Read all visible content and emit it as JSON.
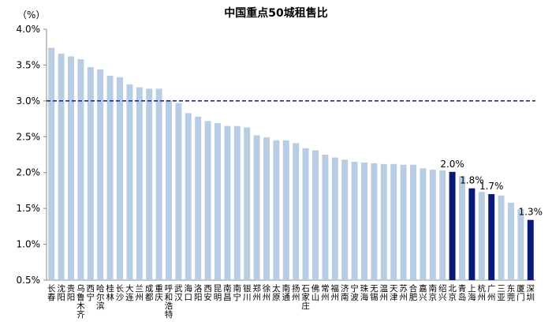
{
  "chart_data": {
    "type": "bar",
    "title": "中国重点50城租售比",
    "unit_label": "（%）",
    "ylim": [
      0.5,
      4.0
    ],
    "yticks": [
      0.5,
      1.0,
      1.5,
      2.0,
      2.5,
      3.0,
      3.5,
      4.0
    ],
    "ytick_labels": [
      "0.5%",
      "1.0%",
      "1.5%",
      "2.0%",
      "2.5%",
      "3.0%",
      "3.5%",
      "4.0%"
    ],
    "reference_line": 3.0,
    "colors": {
      "bar": "#b8cce4",
      "highlight": "#0a1a7a",
      "reference_line": "#1f2a8a"
    },
    "categories": [
      "长春",
      "沈阳",
      "贵阳",
      "乌鲁木齐",
      "西宁",
      "哈尔滨",
      "桂林",
      "长沙",
      "大连",
      "兰州",
      "成都",
      "重庆",
      "呼和浩特",
      "武汉",
      "海口",
      "洛阳",
      "西安",
      "昆明",
      "南昌",
      "南宁",
      "银川",
      "郑州",
      "徐州",
      "太原",
      "南通",
      "扬州",
      "石家庄",
      "佛山",
      "常州",
      "福州",
      "济南",
      "宁波",
      "珠海",
      "无锡",
      "温州",
      "天津",
      "苏州",
      "合肥",
      "嘉兴",
      "南京",
      "绍兴",
      "北京",
      "青岛",
      "上海",
      "杭州",
      "广州",
      "三亚",
      "东莞",
      "厦门",
      "深圳"
    ],
    "values": [
      3.74,
      3.66,
      3.62,
      3.58,
      3.47,
      3.44,
      3.35,
      3.33,
      3.23,
      3.19,
      3.17,
      3.17,
      3.01,
      2.97,
      2.83,
      2.78,
      2.72,
      2.69,
      2.65,
      2.65,
      2.63,
      2.52,
      2.49,
      2.45,
      2.45,
      2.41,
      2.34,
      2.31,
      2.25,
      2.21,
      2.18,
      2.15,
      2.14,
      2.13,
      2.12,
      2.12,
      2.11,
      2.11,
      2.06,
      2.04,
      2.03,
      2.01,
      1.95,
      1.78,
      1.73,
      1.7,
      1.68,
      1.58,
      1.49,
      1.34
    ],
    "highlighted": [
      "北京",
      "上海",
      "广州",
      "深圳"
    ],
    "data_labels": [
      {
        "category": "北京",
        "text": "2.0%"
      },
      {
        "category": "上海",
        "text": "1.8%"
      },
      {
        "category": "广州",
        "text": "1.7%"
      },
      {
        "category": "深圳",
        "text": "1.3%"
      }
    ]
  }
}
